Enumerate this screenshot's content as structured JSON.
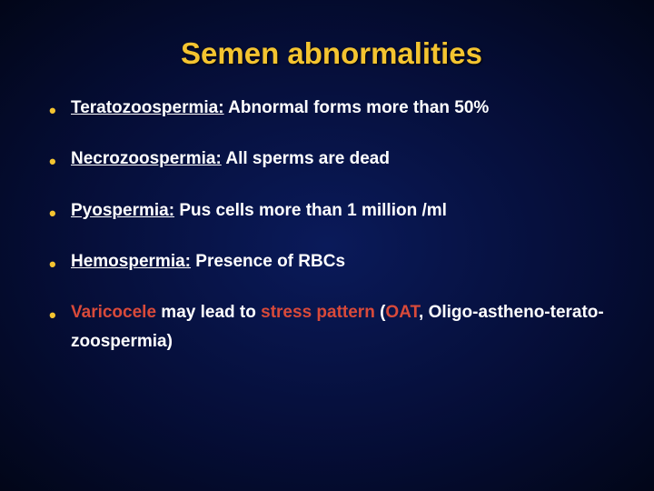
{
  "slide": {
    "title": "Semen abnormalities",
    "title_color": "#f4c430",
    "background_gradient": {
      "center": "#0a1a5a",
      "mid": "#050d35",
      "edge": "#020618"
    },
    "bullet_color": "#f4c430",
    "text_color": "#ffffff",
    "accent_red": "#d94a3a",
    "title_fontsize": 33,
    "body_fontsize": 19,
    "font_family": "Verdana",
    "bullets": [
      {
        "term": "Teratozoospermia:",
        "desc": " Abnormal forms more than 50%"
      },
      {
        "term": "Necrozoospermia:",
        "desc": " All sperms are dead"
      },
      {
        "term": "Pyospermia:",
        "desc": " Pus cells more than 1 million /ml"
      },
      {
        "term": "Hemospermia:",
        "desc": " Presence of RBCs"
      }
    ],
    "final": {
      "w1": "Varicocele",
      "t1": " may lead to ",
      "w2": "stress pattern",
      "t2": " (",
      "w3": "OAT",
      "t3": ", Oligo-astheno-terato-zoospermia)"
    }
  }
}
